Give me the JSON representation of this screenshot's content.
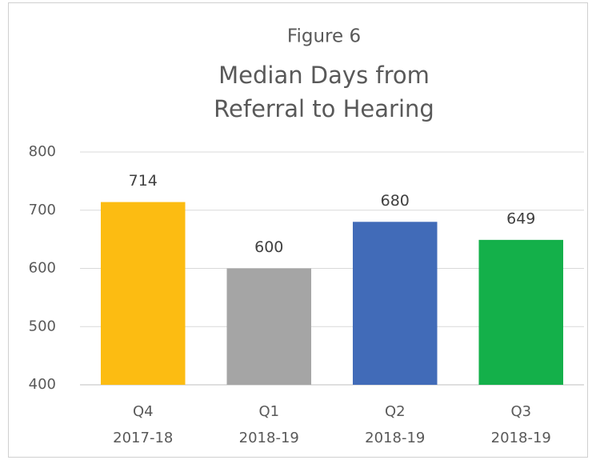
{
  "chart_data": {
    "type": "bar",
    "title": "Figure 6",
    "subtitle": [
      "Median Days from",
      "Referral to Hearing"
    ],
    "categories": [
      [
        "Q4",
        "2017-18"
      ],
      [
        "Q1",
        "2018-19"
      ],
      [
        "Q2",
        "2018-19"
      ],
      [
        "Q3",
        "2018-19"
      ]
    ],
    "values": [
      714,
      600,
      680,
      649
    ],
    "colors": [
      "#fcbc12",
      "#a5a5a5",
      "#416bb8",
      "#14b04a"
    ],
    "ylim": [
      400,
      800
    ],
    "yticks": [
      400,
      500,
      600,
      700,
      800
    ],
    "grid": true
  }
}
